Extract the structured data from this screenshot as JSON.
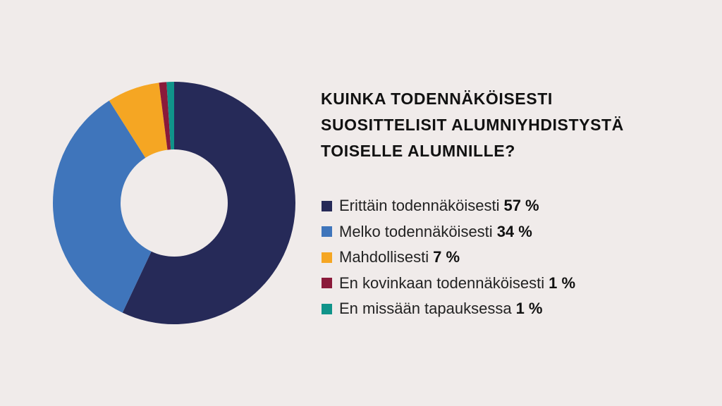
{
  "chart_data": {
    "type": "pie",
    "title_lines": [
      "KUINKA TODENNÄKÖISESTI",
      "SUOSITTELISIT ALUMNIYHDISTYSTÄ",
      "TOISELLE ALUMNILLE?"
    ],
    "categories": [
      "Erittäin todennäköisesti",
      "Melko todennäköisesti",
      "Mahdollisesti",
      "En kovinkaan todennäköisesti",
      "En missään tapauksessa"
    ],
    "values": [
      57,
      34,
      7,
      1,
      1
    ],
    "value_labels": [
      "57 %",
      "34 %",
      "7 %",
      "1 %",
      "1 %"
    ],
    "colors": [
      "#262a58",
      "#3f75bb",
      "#f5a623",
      "#8a1a3a",
      "#10948a"
    ],
    "hole": true,
    "legend_position": "right"
  }
}
